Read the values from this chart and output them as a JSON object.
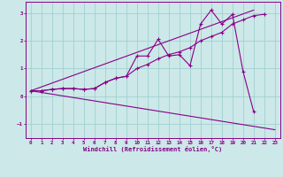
{
  "xlabel": "Windchill (Refroidissement éolien,°C)",
  "bg_color": "#cce8e8",
  "line_color": "#880088",
  "grid_color": "#99cccc",
  "xlim": [
    -0.5,
    23.5
  ],
  "ylim": [
    -1.5,
    3.4
  ],
  "xticks": [
    0,
    1,
    2,
    3,
    4,
    5,
    6,
    7,
    8,
    9,
    10,
    11,
    12,
    13,
    14,
    15,
    16,
    17,
    18,
    19,
    20,
    21,
    22,
    23
  ],
  "yticks": [
    -1,
    0,
    1,
    2,
    3
  ],
  "line1_x": [
    0,
    1,
    2,
    3,
    4,
    5,
    6,
    7,
    8,
    9,
    10,
    11,
    12,
    13,
    14,
    15,
    16,
    17,
    18,
    19,
    20,
    21
  ],
  "line1_y": [
    0.2,
    0.2,
    0.25,
    0.28,
    0.28,
    0.25,
    0.28,
    0.5,
    0.65,
    0.72,
    1.45,
    1.45,
    2.05,
    1.45,
    1.5,
    1.1,
    2.6,
    3.1,
    2.6,
    2.95,
    0.9,
    -0.55
  ],
  "line2_x": [
    0,
    1,
    2,
    3,
    4,
    5,
    6,
    7,
    8,
    9,
    10,
    11,
    12,
    13,
    14,
    15,
    16,
    17,
    18,
    19,
    20,
    21,
    22
  ],
  "line2_y": [
    0.2,
    0.2,
    0.25,
    0.28,
    0.28,
    0.25,
    0.28,
    0.5,
    0.65,
    0.72,
    1.0,
    1.15,
    1.35,
    1.5,
    1.6,
    1.75,
    2.0,
    2.15,
    2.3,
    2.6,
    2.75,
    2.9,
    2.95
  ],
  "line3_x": [
    0,
    21
  ],
  "line3_y": [
    0.2,
    3.1
  ],
  "line4_x": [
    0,
    23
  ],
  "line4_y": [
    0.2,
    -1.2
  ]
}
